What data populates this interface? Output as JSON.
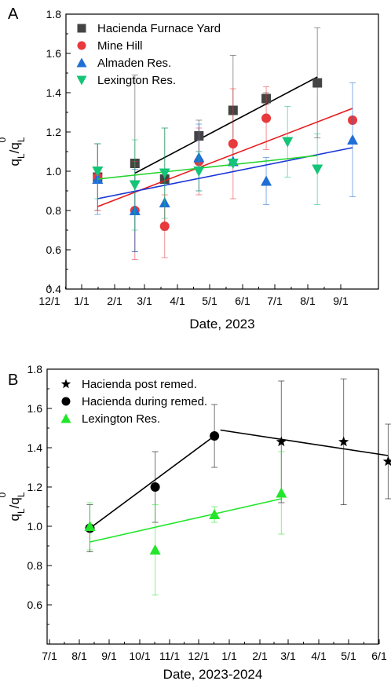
{
  "chart_data": [
    {
      "panel_label": "A",
      "type": "scatter",
      "xlabel": "Date, 2023",
      "ylabel_main": "q",
      "ylabel_sub": "L",
      "ylabel_div": "/q",
      "ylabel_sub2": "L",
      "ylabel_sup": "0",
      "ylim": [
        0.4,
        1.8
      ],
      "yticks": [
        "0.4",
        "0.6",
        "0.8",
        "1.0",
        "1.2",
        "1.4",
        "1.6",
        "1.8"
      ],
      "xticks": [
        "12/1",
        "1/1",
        "2/1",
        "3/1",
        "4/1",
        "5/1",
        "6/1",
        "7/1",
        "8/1",
        "9/1"
      ],
      "legend_position": "top-left",
      "series": [
        {
          "name": "Hacienda Furnace Yard",
          "marker": "square",
          "color": "#444444",
          "points": [
            {
              "x": "1/16",
              "y": 0.97,
              "err": 0.17
            },
            {
              "x": "2/20",
              "y": 1.04,
              "err": 0.45
            },
            {
              "x": "3/20",
              "y": 0.96,
              "err": 0.26
            },
            {
              "x": "4/21",
              "y": 1.18,
              "err": 0.08
            },
            {
              "x": "5/23",
              "y": 1.31,
              "err": 0.28
            },
            {
              "x": "6/23",
              "y": 1.37,
              "err": 0.03
            },
            {
              "x": "8/10",
              "y": 1.45,
              "err": 0.28
            }
          ],
          "fit": {
            "x1": "2/20",
            "y1": 0.99,
            "x2": "8/10",
            "y2": 1.48,
            "color": "#000000"
          }
        },
        {
          "name": "Mine Hill",
          "marker": "circle",
          "color": "#e8393c",
          "points": [
            {
              "x": "1/16",
              "y": 0.97,
              "err": 0.17
            },
            {
              "x": "2/20",
              "y": 0.8,
              "err": 0.25
            },
            {
              "x": "3/20",
              "y": 0.72,
              "err": 0.16
            },
            {
              "x": "4/21",
              "y": 1.05,
              "err": 0.17
            },
            {
              "x": "5/23",
              "y": 1.14,
              "err": 0.28
            },
            {
              "x": "6/23",
              "y": 1.27,
              "err": 0.16
            },
            {
              "x": "9/12",
              "y": 1.26,
              "err": 0.0
            }
          ],
          "fit": {
            "x1": "1/16",
            "y1": 0.82,
            "x2": "9/12",
            "y2": 1.32,
            "color": "#e8191c"
          }
        },
        {
          "name": "Almaden Res.",
          "marker": "triangle-up",
          "color": "#1f6fd6",
          "points": [
            {
              "x": "1/16",
              "y": 0.96,
              "err": 0.18
            },
            {
              "x": "2/20",
              "y": 0.8,
              "err": 0.21
            },
            {
              "x": "3/20",
              "y": 0.84,
              "err": 0.0
            },
            {
              "x": "4/21",
              "y": 1.07,
              "err": 0.17
            },
            {
              "x": "5/23",
              "y": 1.05,
              "err": 0.0
            },
            {
              "x": "6/23",
              "y": 0.95,
              "err": 0.12
            },
            {
              "x": "9/12",
              "y": 1.16,
              "err": 0.29
            }
          ],
          "fit": {
            "x1": "1/16",
            "y1": 0.86,
            "x2": "9/12",
            "y2": 1.12,
            "color": "#1a36d6"
          }
        },
        {
          "name": "Lexington Res.",
          "marker": "triangle-down",
          "color": "#14c477",
          "points": [
            {
              "x": "1/16",
              "y": 1.0,
              "err": 0.14
            },
            {
              "x": "2/20",
              "y": 0.93,
              "err": 0.23
            },
            {
              "x": "3/20",
              "y": 0.99,
              "err": 0.23
            },
            {
              "x": "4/21",
              "y": 1.0,
              "err": 0.1
            },
            {
              "x": "5/23",
              "y": 1.04,
              "err": 0.0
            },
            {
              "x": "7/13",
              "y": 1.15,
              "err": 0.18
            },
            {
              "x": "8/10",
              "y": 1.01,
              "err": 0.18
            }
          ],
          "fit": {
            "x1": "1/16",
            "y1": 0.96,
            "x2": "8/10",
            "y2": 1.08,
            "color": "#22d42c"
          }
        }
      ]
    },
    {
      "panel_label": "B",
      "type": "scatter",
      "xlabel": "Date, 2023-2024",
      "ylabel_main": "q",
      "ylabel_sub": "L",
      "ylabel_div": "/q",
      "ylabel_sub2": "L",
      "ylabel_sup": "0",
      "ylim": [
        0.4,
        1.8
      ],
      "yticks": [
        "0.6",
        "0.8",
        "1.0",
        "1.2",
        "1.4",
        "1.6",
        "1.8"
      ],
      "xticks": [
        "7/1",
        "8/1",
        "9/1",
        "10/1",
        "11/1",
        "12/1",
        "1/1",
        "2/1",
        "3/1",
        "4/1",
        "5/1",
        "6/1"
      ],
      "legend_position": "top-left",
      "series": [
        {
          "name": "Hacienda post remed.",
          "marker": "star",
          "color": "#000000",
          "points": [
            {
              "x": "2024-02-23",
              "y": 1.43,
              "err": 0.31
            },
            {
              "x": "2024-04-26",
              "y": 1.43,
              "err": 0.32
            },
            {
              "x": "2024-06-10",
              "y": 1.33,
              "err": 0.19
            }
          ],
          "fit": {
            "x1": "2023-12-23",
            "y1": 1.49,
            "x2": "2024-06-10",
            "y2": 1.36,
            "color": "#000000"
          }
        },
        {
          "name": "Hacienda during remed.",
          "marker": "circle",
          "color": "#000000",
          "points": [
            {
              "x": "2023-08-12",
              "y": 0.99,
              "err": 0.12
            },
            {
              "x": "2023-10-17",
              "y": 1.2,
              "err": 0.18
            },
            {
              "x": "2023-12-17",
              "y": 1.46,
              "err": 0.16
            }
          ],
          "fit": {
            "x1": "2023-08-12",
            "y1": 0.99,
            "x2": "2023-12-17",
            "y2": 1.46,
            "color": "#000000"
          }
        },
        {
          "name": "Lexington Res.",
          "marker": "triangle-up",
          "color": "#22e62a",
          "points": [
            {
              "x": "2023-08-12",
              "y": 1.0,
              "err": 0.12
            },
            {
              "x": "2023-10-17",
              "y": 0.88,
              "err": 0.23
            },
            {
              "x": "2023-12-17",
              "y": 1.06,
              "err": 0.04
            },
            {
              "x": "2024-02-23",
              "y": 1.17,
              "err": 0.21
            }
          ],
          "fit": {
            "x1": "2023-08-12",
            "y1": 0.92,
            "x2": "2024-02-23",
            "y2": 1.14,
            "color": "#22e62a"
          }
        }
      ]
    }
  ]
}
